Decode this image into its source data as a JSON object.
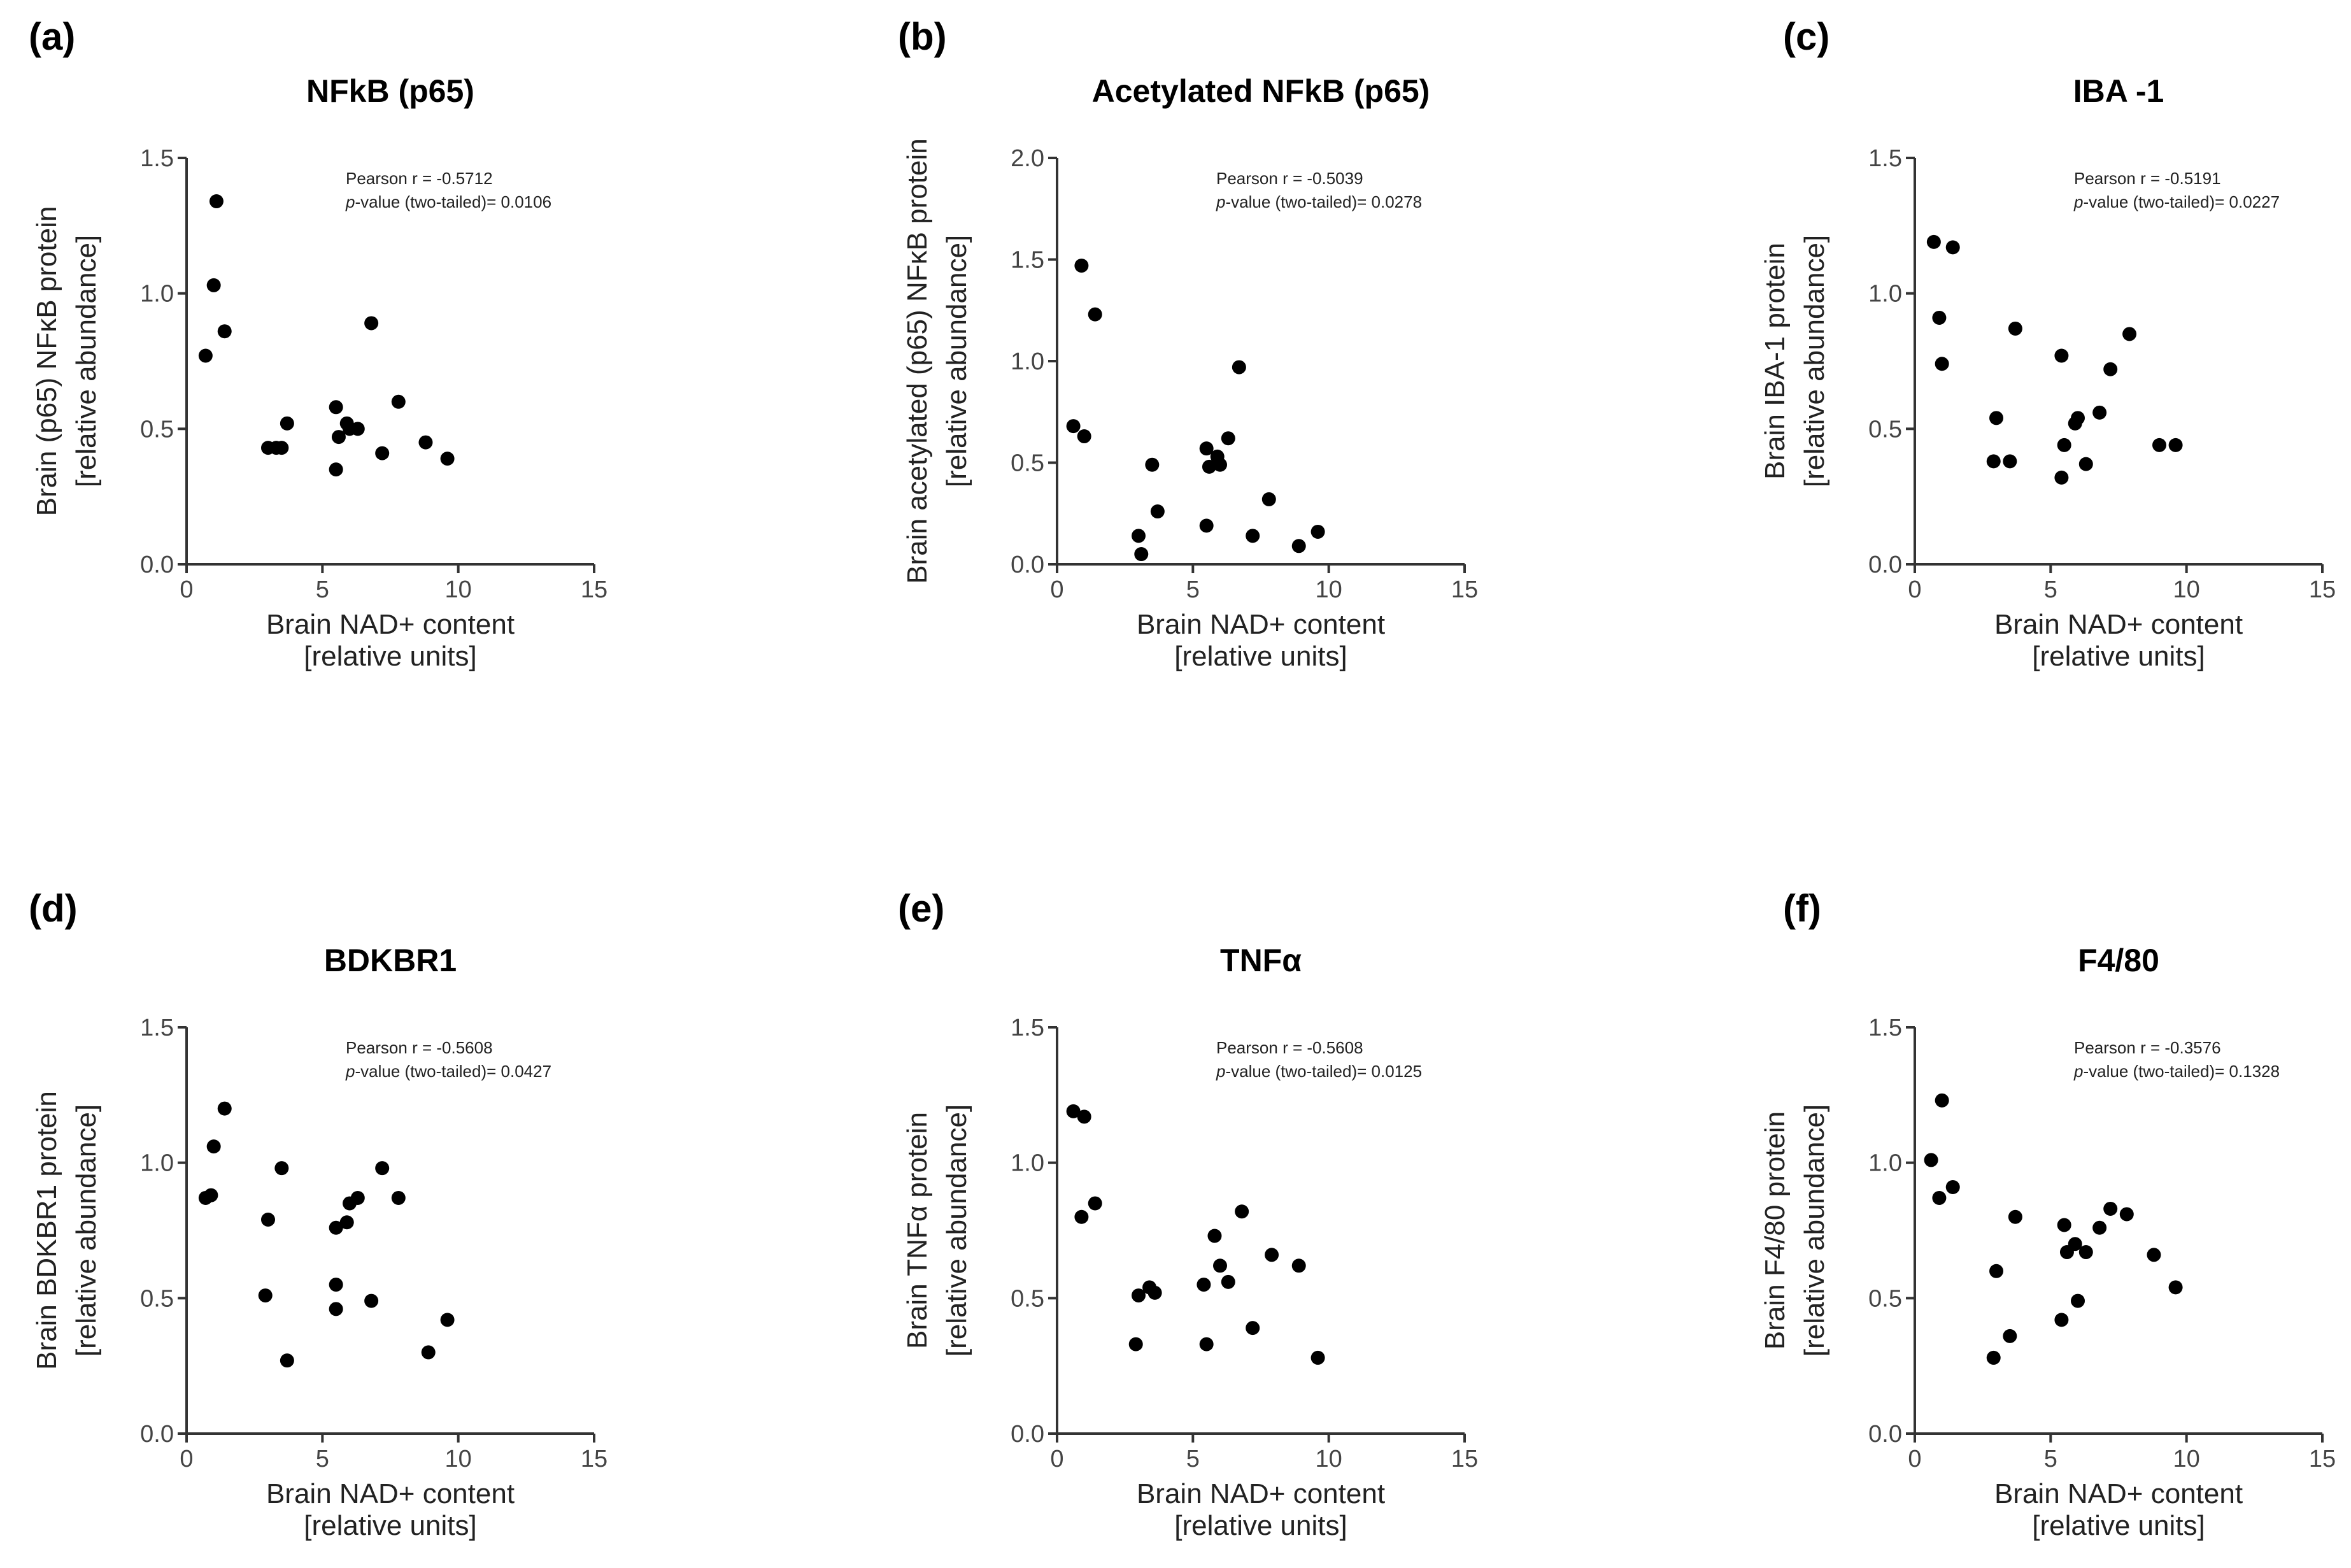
{
  "figure": {
    "x_axis_label_line1": "Brain NAD+ content",
    "x_axis_label_line2": "[relative units]"
  },
  "chart_data": [
    {
      "type": "scatter",
      "panel": "(a)",
      "title": "NFkB (p65)",
      "ylabel_line1": "Brain (p65) NFκB protein",
      "ylabel_line2": "[relative abundance]",
      "xlabel": "Brain NAD+ content [relative units]",
      "xlim": [
        0,
        15
      ],
      "xticks": [
        0,
        5,
        10,
        15
      ],
      "ylim": [
        0,
        1.5
      ],
      "yticks": [
        0.0,
        0.5,
        1.0,
        1.5
      ],
      "pearson": "Pearson r = -0.5712",
      "pvalue_prefix": "p",
      "pvalue": "-value (two-tailed)= 0.0106",
      "x": [
        0.7,
        1.0,
        1.1,
        1.4,
        3.0,
        3.3,
        3.5,
        3.7,
        5.5,
        5.5,
        5.6,
        5.9,
        6.0,
        6.3,
        6.8,
        7.2,
        7.8,
        8.8,
        9.6
      ],
      "y": [
        0.77,
        1.03,
        1.34,
        0.86,
        0.43,
        0.43,
        0.43,
        0.52,
        0.58,
        0.35,
        0.47,
        0.52,
        0.5,
        0.5,
        0.89,
        0.41,
        0.6,
        0.45,
        0.39
      ]
    },
    {
      "type": "scatter",
      "panel": "(b)",
      "title": "Acetylated NFkB (p65)",
      "ylabel_line1": "Brain acetylated (p65) NFκB protein",
      "ylabel_line2": "[relative abundance]",
      "xlabel": "Brain NAD+ content [relative units]",
      "xlim": [
        0,
        15
      ],
      "xticks": [
        0,
        5,
        10,
        15
      ],
      "ylim": [
        0,
        2.0
      ],
      "yticks": [
        0.0,
        0.5,
        1.0,
        1.5,
        2.0
      ],
      "pearson": "Pearson r = -0.5039",
      "pvalue_prefix": "p",
      "pvalue": "-value (two-tailed)= 0.0278",
      "x": [
        0.6,
        0.9,
        1.0,
        1.4,
        3.0,
        3.1,
        3.5,
        3.7,
        5.5,
        5.5,
        5.6,
        5.9,
        6.0,
        6.3,
        6.7,
        7.2,
        7.8,
        8.9,
        9.6
      ],
      "y": [
        0.68,
        1.47,
        0.63,
        1.23,
        0.14,
        0.05,
        0.49,
        0.26,
        0.57,
        0.19,
        0.48,
        0.53,
        0.49,
        0.62,
        0.97,
        0.14,
        0.32,
        0.09,
        0.16
      ]
    },
    {
      "type": "scatter",
      "panel": "(c)",
      "title": "IBA -1",
      "ylabel_line1": "Brain IBA-1 protein",
      "ylabel_line2": "[relative abundance]",
      "xlabel": "Brain NAD+ content [relative units]",
      "xlim": [
        0,
        15
      ],
      "xticks": [
        0,
        5,
        10,
        15
      ],
      "ylim": [
        0,
        1.5
      ],
      "yticks": [
        0.0,
        0.5,
        1.0,
        1.5
      ],
      "pearson": "Pearson r = -0.5191",
      "pvalue_prefix": "p",
      "pvalue": "-value (two-tailed)= 0.0227",
      "x": [
        0.7,
        0.9,
        1.0,
        1.4,
        2.9,
        3.0,
        3.5,
        3.7,
        5.4,
        5.4,
        5.5,
        5.9,
        6.0,
        6.3,
        6.8,
        7.2,
        7.9,
        9.0,
        9.6
      ],
      "y": [
        1.19,
        0.91,
        0.74,
        1.17,
        0.38,
        0.54,
        0.38,
        0.87,
        0.77,
        0.32,
        0.44,
        0.52,
        0.54,
        0.37,
        0.56,
        0.72,
        0.85,
        0.44,
        0.44
      ]
    },
    {
      "type": "scatter",
      "panel": "(d)",
      "title": "BDKBR1",
      "ylabel_line1": "Brain BDKBR1 protein",
      "ylabel_line2": "[relative abundance]",
      "xlabel": "Brain NAD+ content [relative units]",
      "xlim": [
        0,
        15
      ],
      "xticks": [
        0,
        5,
        10,
        15
      ],
      "ylim": [
        0,
        1.5
      ],
      "yticks": [
        0.0,
        0.5,
        1.0,
        1.5
      ],
      "pearson": "Pearson r = -0.5608",
      "pvalue_prefix": "p",
      "pvalue": "-value (two-tailed)= 0.0427",
      "x": [
        0.7,
        0.9,
        1.0,
        1.4,
        2.9,
        3.0,
        3.5,
        3.7,
        5.5,
        5.5,
        5.5,
        5.9,
        6.0,
        6.3,
        6.8,
        7.2,
        7.8,
        8.9,
        9.6
      ],
      "y": [
        0.87,
        0.88,
        1.06,
        1.2,
        0.51,
        0.79,
        0.98,
        0.27,
        0.76,
        0.55,
        0.46,
        0.78,
        0.85,
        0.87,
        0.49,
        0.98,
        0.87,
        0.3,
        0.42
      ]
    },
    {
      "type": "scatter",
      "panel": "(e)",
      "title": "TNFα",
      "ylabel_line1": "Brain TNFα protein",
      "ylabel_line2": "[relative abundance]",
      "xlabel": "Brain NAD+ content [relative units]",
      "xlim": [
        0,
        15
      ],
      "xticks": [
        0,
        5,
        10,
        15
      ],
      "ylim": [
        0,
        1.5
      ],
      "yticks": [
        0.0,
        0.5,
        1.0,
        1.5
      ],
      "pearson": "Pearson r = -0.5608",
      "pvalue_prefix": "p",
      "pvalue": "-value (two-tailed)= 0.0125",
      "x": [
        0.6,
        0.9,
        1.0,
        1.4,
        2.9,
        3.0,
        3.4,
        3.6,
        5.4,
        5.5,
        5.8,
        6.0,
        6.3,
        6.8,
        7.2,
        7.9,
        8.9,
        9.6
      ],
      "y": [
        1.19,
        0.8,
        1.17,
        0.85,
        0.33,
        0.51,
        0.54,
        0.52,
        0.55,
        0.33,
        0.73,
        0.62,
        0.56,
        0.82,
        0.39,
        0.66,
        0.62,
        0.28
      ]
    },
    {
      "type": "scatter",
      "panel": "(f)",
      "title": "F4/80",
      "ylabel_line1": "Brain F4/80 protein",
      "ylabel_line2": "[relative abundance]",
      "xlabel": "Brain NAD+ content [relative units]",
      "xlim": [
        0,
        15
      ],
      "xticks": [
        0,
        5,
        10,
        15
      ],
      "ylim": [
        0,
        1.5
      ],
      "yticks": [
        0.0,
        0.5,
        1.0,
        1.5
      ],
      "pearson": "Pearson r = -0.3576",
      "pvalue_prefix": "p",
      "pvalue": "-value (two-tailed)= 0.1328",
      "x": [
        0.6,
        0.9,
        1.0,
        1.4,
        2.9,
        3.0,
        3.5,
        3.7,
        5.4,
        5.5,
        5.6,
        5.9,
        6.0,
        6.3,
        6.8,
        7.2,
        7.8,
        8.8,
        9.6
      ],
      "y": [
        1.01,
        0.87,
        1.23,
        0.91,
        0.28,
        0.6,
        0.36,
        0.8,
        0.42,
        0.77,
        0.67,
        0.7,
        0.49,
        0.67,
        0.76,
        0.83,
        0.81,
        0.66,
        0.54
      ]
    }
  ]
}
